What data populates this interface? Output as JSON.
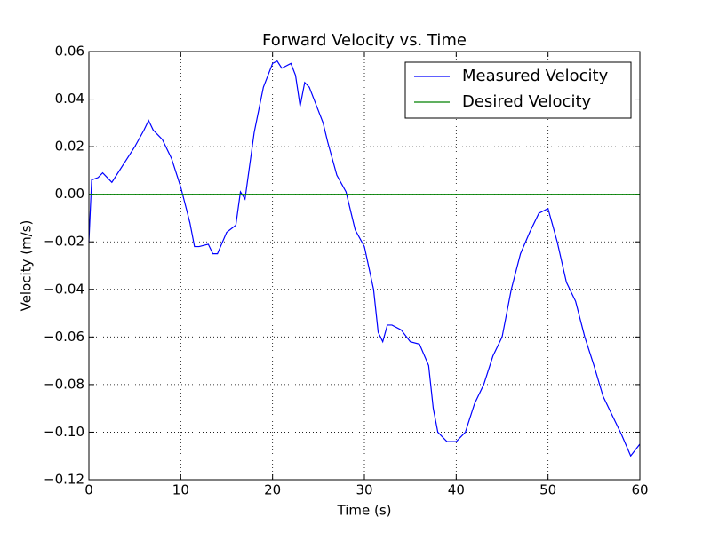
{
  "chart_data": {
    "type": "line",
    "title": "Forward Velocity vs. Time",
    "x_label": "Time (s)",
    "y_label": "Velocity (m/s)",
    "xlim": [
      0,
      60
    ],
    "ylim": [
      -0.12,
      0.06
    ],
    "xticks": [
      0,
      10,
      20,
      30,
      40,
      50,
      60
    ],
    "yticks": [
      {
        "value": -0.12,
        "label": "−0.12"
      },
      {
        "value": -0.1,
        "label": "−0.10"
      },
      {
        "value": -0.08,
        "label": "−0.08"
      },
      {
        "value": -0.06,
        "label": "−0.06"
      },
      {
        "value": -0.04,
        "label": "−0.04"
      },
      {
        "value": -0.02,
        "label": "−0.02"
      },
      {
        "value": 0,
        "label": "0.00"
      },
      0.02,
      0.04,
      0.06
    ],
    "grid": true,
    "legend_position": "upper-right",
    "series": [
      {
        "name": "Measured Velocity",
        "color": "#0000ff",
        "x": [
          0,
          0.3,
          1,
          1.5,
          2,
          2.5,
          3,
          4,
          5,
          6,
          6.5,
          7,
          8,
          9,
          10,
          11,
          11.5,
          12,
          13,
          13.5,
          14,
          15,
          16,
          16.5,
          17,
          18,
          19,
          20,
          20.5,
          21,
          22,
          22.5,
          23,
          23.5,
          24,
          25,
          25.5,
          26,
          27,
          28,
          29,
          30,
          31,
          31.5,
          32,
          32.5,
          33,
          34,
          35,
          36,
          37,
          37.5,
          38,
          39,
          40,
          41,
          42,
          43,
          44,
          45,
          46,
          47,
          48,
          49,
          50,
          51,
          52,
          53,
          54,
          55,
          56,
          57,
          58,
          59,
          60
        ],
        "values": [
          -0.02,
          0.006,
          0.007,
          0.009,
          0.007,
          0.005,
          0.008,
          0.014,
          0.02,
          0.027,
          0.031,
          0.027,
          0.023,
          0.015,
          0.003,
          -0.012,
          -0.022,
          -0.022,
          -0.021,
          -0.025,
          -0.025,
          -0.016,
          -0.013,
          0.001,
          -0.002,
          0.026,
          0.045,
          0.055,
          0.056,
          0.053,
          0.055,
          0.05,
          0.037,
          0.047,
          0.045,
          0.035,
          0.03,
          0.022,
          0.008,
          0.001,
          -0.015,
          -0.022,
          -0.04,
          -0.058,
          -0.062,
          -0.055,
          -0.055,
          -0.057,
          -0.062,
          -0.063,
          -0.072,
          -0.09,
          -0.1,
          -0.104,
          -0.104,
          -0.1,
          -0.088,
          -0.08,
          -0.068,
          -0.06,
          -0.04,
          -0.025,
          -0.016,
          -0.008,
          -0.006,
          -0.02,
          -0.037,
          -0.045,
          -0.06,
          -0.072,
          -0.085,
          -0.093,
          -0.101,
          -0.11,
          -0.105
        ]
      },
      {
        "name": "Desired Velocity",
        "color": "#008000",
        "x": [
          0,
          60
        ],
        "values": [
          0,
          0
        ]
      }
    ]
  }
}
